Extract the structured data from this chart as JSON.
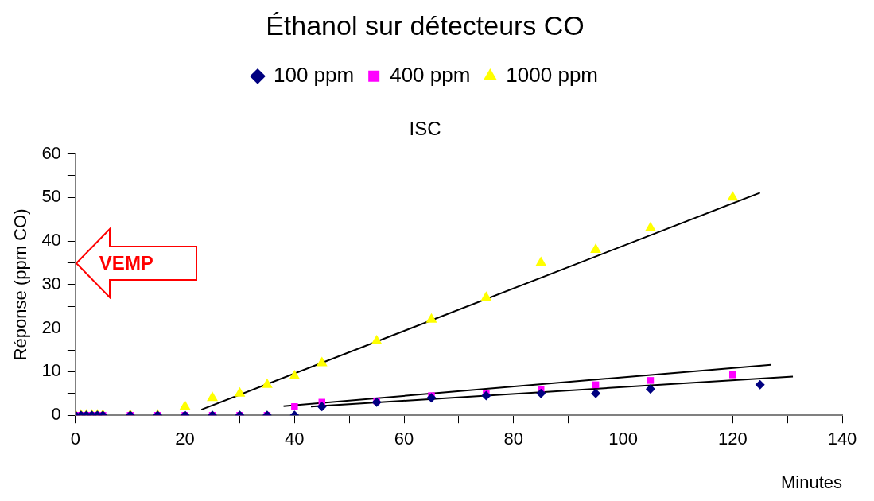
{
  "chart_data": {
    "type": "scatter",
    "title": "Éthanol sur détecteurs CO",
    "subtitle": "ISC",
    "xlabel": "Minutes",
    "ylabel": "Réponse (ppm CO)",
    "legend": "top",
    "grid": false,
    "xlim": [
      0,
      140
    ],
    "xticks": [
      0,
      {
        "value": 10,
        "label": null
      },
      20,
      {
        "value": 30,
        "label": null
      },
      40,
      {
        "value": 50,
        "label": null
      },
      60,
      {
        "value": 70,
        "label": null
      },
      80,
      {
        "value": 90,
        "label": null
      },
      100,
      {
        "value": 110,
        "label": null
      },
      120,
      {
        "value": 130,
        "label": null
      },
      140
    ],
    "ylim": [
      0,
      60
    ],
    "yticks": [
      0,
      {
        "value": 5,
        "label": null
      },
      10,
      {
        "value": 15,
        "label": null
      },
      20,
      {
        "value": 25,
        "label": null
      },
      30,
      {
        "value": 35,
        "label": null
      },
      40,
      {
        "value": 45,
        "label": null
      },
      50,
      {
        "value": 55,
        "label": null
      },
      60
    ],
    "series": [
      {
        "name": "100 ppm",
        "color": "#000080",
        "marker": "diamond",
        "x": [
          0,
          1,
          2,
          3,
          4,
          5,
          10,
          15,
          20,
          25,
          30,
          35,
          40,
          45,
          55,
          65,
          75,
          85,
          95,
          105,
          125
        ],
        "values": [
          0,
          0,
          0,
          0,
          0,
          0,
          0,
          0,
          0,
          0,
          0,
          0,
          0,
          2,
          3,
          4,
          4.5,
          5,
          5,
          6,
          7
        ]
      },
      {
        "name": "400 ppm",
        "color": "#ff00ff",
        "marker": "square",
        "x": [
          0,
          1,
          2,
          3,
          4,
          5,
          10,
          15,
          20,
          25,
          30,
          35,
          40,
          45,
          55,
          65,
          75,
          85,
          95,
          105,
          120
        ],
        "values": [
          0,
          0,
          0,
          0,
          0,
          0,
          0,
          0,
          0,
          0,
          0,
          0,
          2,
          3,
          3.3,
          4.5,
          5,
          6,
          7,
          8,
          9.3
        ]
      },
      {
        "name": "1000 ppm",
        "color": "#ffff00",
        "marker": "triangle",
        "x": [
          0,
          1,
          2,
          3,
          4,
          5,
          10,
          15,
          20,
          25,
          30,
          35,
          40,
          45,
          55,
          65,
          75,
          85,
          95,
          105,
          120
        ],
        "values": [
          0,
          0,
          0,
          0,
          0,
          0,
          0,
          0,
          2,
          4,
          5,
          7,
          9,
          12,
          17,
          22,
          27,
          35,
          38,
          43,
          50
        ]
      },
      {
        "type": "line",
        "color": "#000000",
        "marker": "none",
        "x": [
          23,
          125
        ],
        "values": [
          1.3,
          51.1
        ]
      },
      {
        "type": "line",
        "color": "#000000",
        "marker": "none",
        "x": [
          38,
          127
        ],
        "values": [
          2.1,
          11.6
        ]
      },
      {
        "type": "line",
        "color": "#000000",
        "marker": "none",
        "x": [
          43,
          131
        ],
        "values": [
          2.0,
          8.9
        ]
      }
    ],
    "annotations": [
      "VEMP"
    ]
  }
}
